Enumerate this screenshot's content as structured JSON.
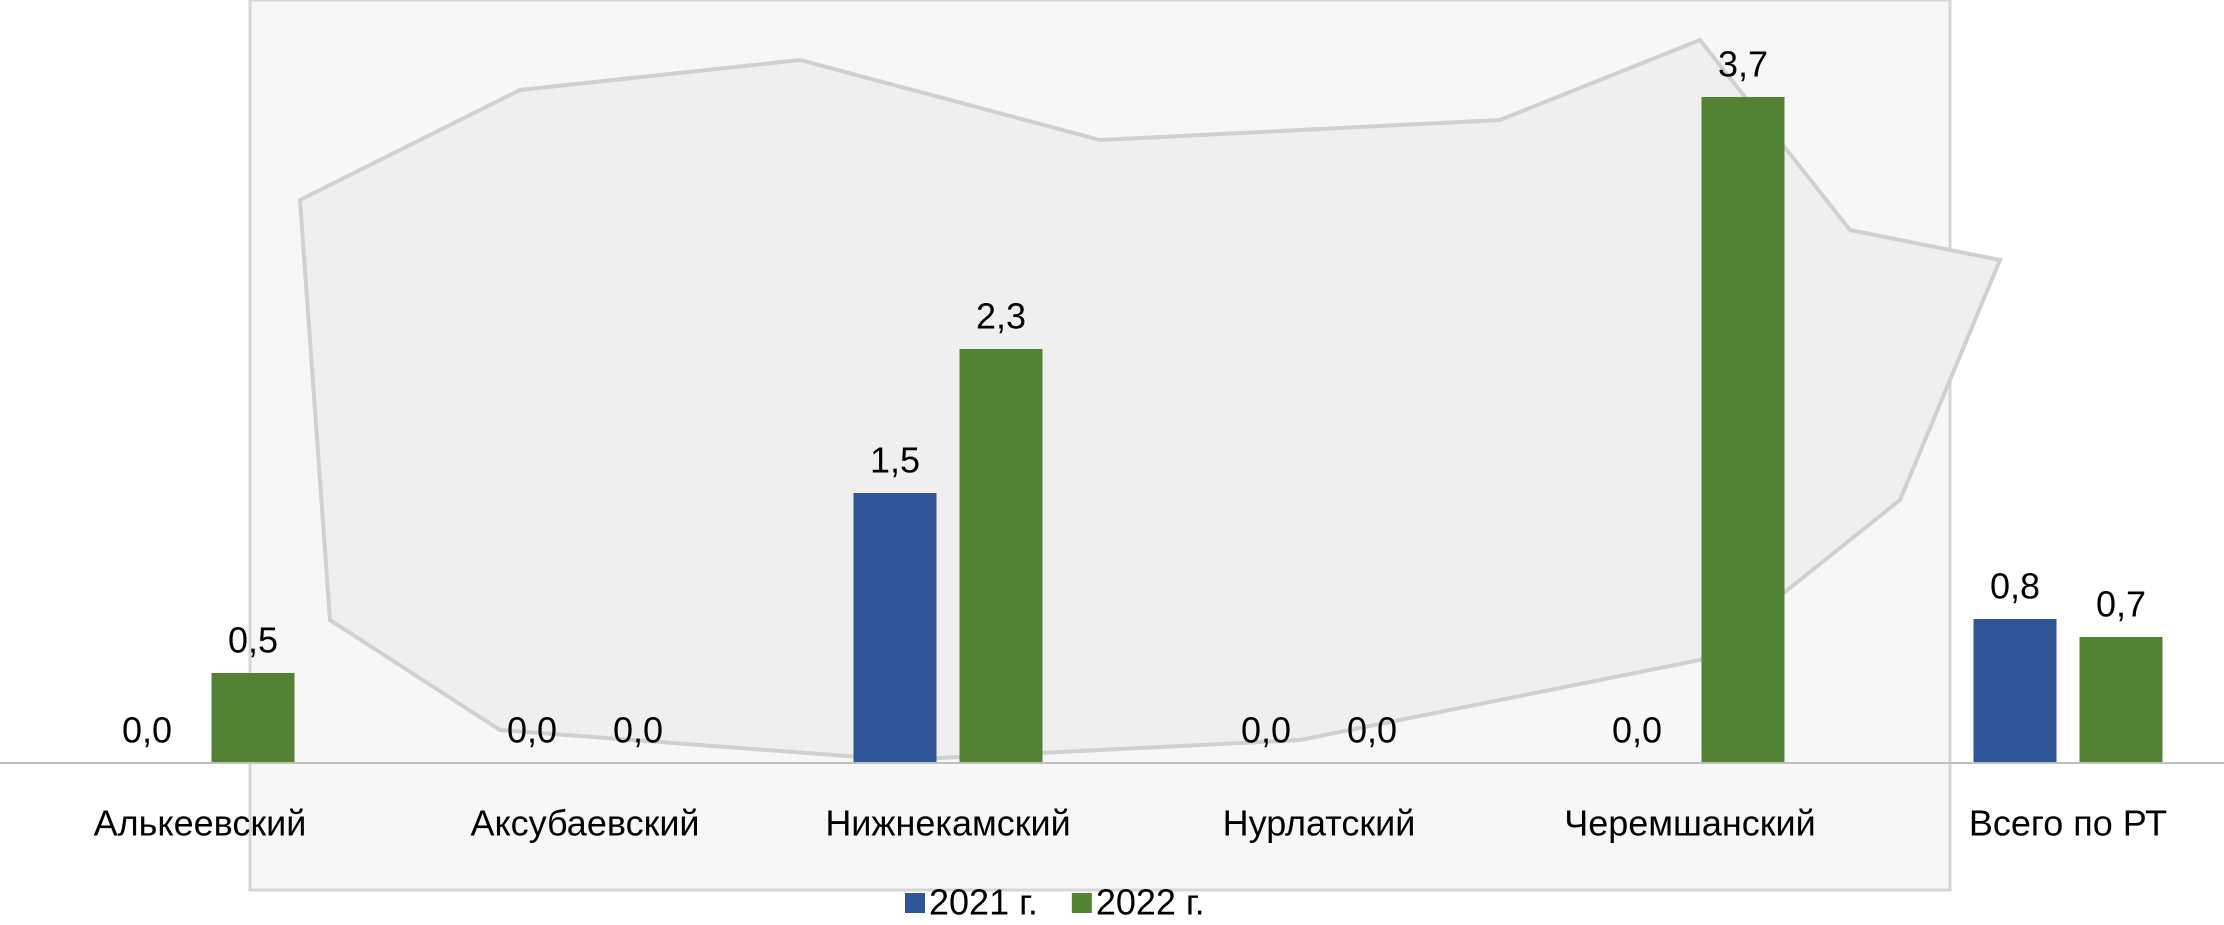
{
  "chart_data": {
    "type": "bar",
    "categories": [
      "Алькеевский",
      "Аксубаевский",
      "Нижнекамский",
      "Нурлатский",
      "Черемшанский",
      "Всего по РТ"
    ],
    "series": [
      {
        "name": "2021 г.",
        "color": "#2f5597",
        "values": [
          0,
          0,
          1.5,
          0,
          0,
          0.8
        ],
        "value_labels": [
          "0,0",
          "0,0",
          "1,5",
          "0,0",
          "0,0",
          "0,8"
        ]
      },
      {
        "name": "2022 г.",
        "color": "#548235",
        "values": [
          0.5,
          0,
          2.3,
          0,
          3.7,
          0.7
        ],
        "value_labels": [
          "0,5",
          "0,0",
          "2,3",
          "0,0",
          "3,7",
          "0,7"
        ]
      }
    ],
    "ylim": [
      0,
      4
    ],
    "grid": false,
    "legend": "bottom"
  }
}
